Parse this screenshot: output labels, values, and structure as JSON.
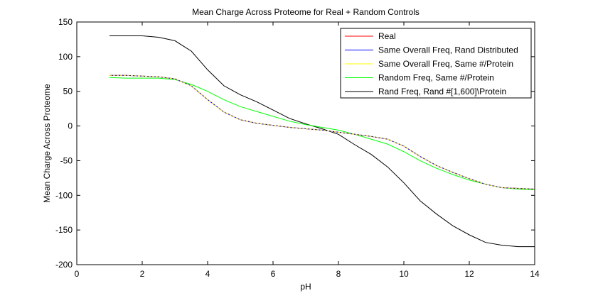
{
  "chart_data": {
    "type": "line",
    "title": "Mean Charge Across Proteome for Real + Random Controls",
    "xlabel": "pH",
    "ylabel": "Mean Charge Across Proteome",
    "xlim": [
      0,
      14
    ],
    "ylim": [
      -200,
      150
    ],
    "xticks": [
      0,
      2,
      4,
      6,
      8,
      10,
      12,
      14
    ],
    "yticks": [
      -200,
      -150,
      -100,
      -50,
      0,
      50,
      100,
      150
    ],
    "grid": false,
    "legend_position": "top-right",
    "x": [
      1,
      1.5,
      2,
      2.5,
      3,
      3.5,
      4,
      4.5,
      5,
      5.5,
      6,
      6.5,
      7,
      7.5,
      8,
      8.5,
      9,
      9.5,
      10,
      10.5,
      11,
      11.5,
      12,
      12.5,
      13,
      13.5,
      14
    ],
    "series": [
      {
        "name": "Real",
        "color": "#ff0000",
        "values": [
          73,
          73,
          72,
          71,
          68,
          58,
          38,
          20,
          9,
          4,
          1,
          -2,
          -4,
          -6,
          -9,
          -12,
          -15,
          -19,
          -29,
          -44,
          -57,
          -67,
          -76,
          -84,
          -89,
          -90,
          -91
        ]
      },
      {
        "name": "Same Overall Freq, Rand Distributed",
        "color": "#0000ff",
        "values": [
          73,
          73,
          72,
          71,
          68,
          58,
          38,
          20,
          9,
          4,
          1,
          -2,
          -4,
          -6,
          -9,
          -12,
          -15,
          -19,
          -29,
          -44,
          -57,
          -67,
          -76,
          -84,
          -89,
          -90,
          -91
        ]
      },
      {
        "name": "Same Overall Freq, Same #/Protein",
        "color": "#ffff00",
        "values": [
          73,
          73,
          72,
          71,
          68,
          58,
          38,
          20,
          9,
          4,
          1,
          -2,
          -4,
          -6,
          -9,
          -12,
          -15,
          -19,
          -29,
          -44,
          -57,
          -67,
          -76,
          -84,
          -89,
          -90,
          -91
        ]
      },
      {
        "name": "Random Freq, Same #/Protein",
        "color": "#00ff00",
        "values": [
          70,
          69,
          69,
          69,
          67,
          60,
          50,
          38,
          28,
          21,
          14,
          7,
          2,
          -2,
          -6,
          -12,
          -19,
          -26,
          -37,
          -50,
          -61,
          -70,
          -78,
          -84,
          -89,
          -91,
          -92
        ]
      },
      {
        "name": "Rand Freq, Rand #[1,600]\\Protein",
        "color": "#000000",
        "values": [
          130,
          130,
          130,
          128,
          123,
          108,
          81,
          58,
          45,
          35,
          23,
          11,
          3,
          -4,
          -12,
          -27,
          -41,
          -59,
          -82,
          -108,
          -127,
          -144,
          -157,
          -168,
          -172,
          -174,
          -174
        ]
      }
    ]
  }
}
